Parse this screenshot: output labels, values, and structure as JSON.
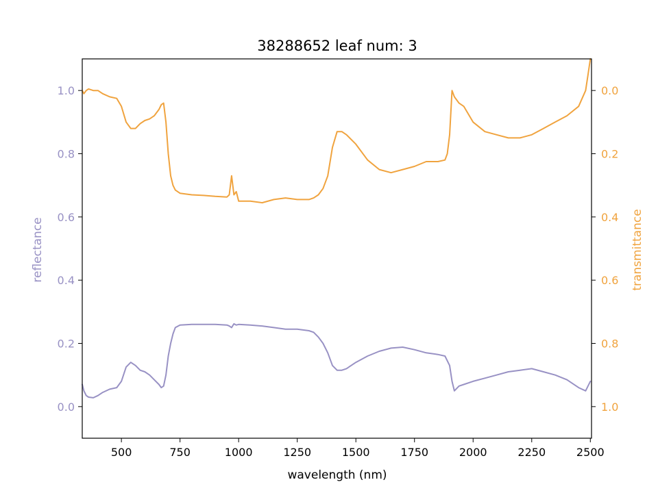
{
  "chart_data": {
    "type": "line",
    "title": "38288652 leaf num: 3",
    "xlabel": "wavelength (nm)",
    "xlim": [
      333,
      2505
    ],
    "x_ticks": [
      500,
      750,
      1000,
      1250,
      1500,
      1750,
      2000,
      2250,
      2500
    ],
    "x_tick_labels": [
      "500",
      "750",
      "1000",
      "1250",
      "1500",
      "1750",
      "2000",
      "2250",
      "2500"
    ],
    "y_left": {
      "label": "reflectance",
      "color": "#9891c4",
      "lim": [
        -0.1,
        1.1
      ],
      "ticks": [
        0.0,
        0.2,
        0.4,
        0.6,
        0.8,
        1.0
      ],
      "tick_labels": [
        "0.0",
        "0.2",
        "0.4",
        "0.6",
        "0.8",
        "1.0"
      ]
    },
    "y_right": {
      "label": "transmittance",
      "color": "#f0a33e",
      "inverted": true,
      "lim": [
        1.1,
        -0.1
      ],
      "ticks": [
        0.0,
        0.2,
        0.4,
        0.6,
        0.8,
        1.0
      ],
      "tick_labels": [
        "0.0",
        "0.2",
        "0.4",
        "0.6",
        "0.8",
        "1.0"
      ]
    },
    "grid": false,
    "series": [
      {
        "axis": "left",
        "color": "#9891c4",
        "x": [
          333,
          340,
          350,
          360,
          380,
          400,
          420,
          450,
          480,
          500,
          520,
          540,
          560,
          580,
          600,
          620,
          640,
          660,
          670,
          680,
          690,
          700,
          710,
          720,
          730,
          750,
          800,
          850,
          900,
          950,
          960,
          970,
          980,
          990,
          1000,
          1050,
          1100,
          1150,
          1200,
          1250,
          1300,
          1320,
          1340,
          1360,
          1380,
          1400,
          1420,
          1440,
          1460,
          1500,
          1550,
          1600,
          1650,
          1700,
          1750,
          1800,
          1850,
          1880,
          1900,
          1910,
          1920,
          1940,
          1960,
          2000,
          2050,
          2100,
          2150,
          2200,
          2250,
          2300,
          2350,
          2400,
          2450,
          2480,
          2500
        ],
        "y": [
          0.07,
          0.05,
          0.035,
          0.03,
          0.028,
          0.035,
          0.045,
          0.055,
          0.06,
          0.08,
          0.125,
          0.14,
          0.13,
          0.115,
          0.11,
          0.1,
          0.085,
          0.07,
          0.06,
          0.065,
          0.1,
          0.16,
          0.2,
          0.23,
          0.25,
          0.258,
          0.26,
          0.26,
          0.26,
          0.258,
          0.255,
          0.25,
          0.262,
          0.258,
          0.26,
          0.258,
          0.255,
          0.25,
          0.245,
          0.245,
          0.24,
          0.235,
          0.22,
          0.2,
          0.17,
          0.13,
          0.115,
          0.115,
          0.12,
          0.14,
          0.16,
          0.175,
          0.185,
          0.188,
          0.18,
          0.17,
          0.165,
          0.16,
          0.13,
          0.08,
          0.05,
          0.065,
          0.07,
          0.08,
          0.09,
          0.1,
          0.11,
          0.115,
          0.12,
          0.11,
          0.1,
          0.085,
          0.06,
          0.05,
          0.08
        ]
      },
      {
        "axis": "right",
        "color": "#f0a33e",
        "x": [
          333,
          340,
          350,
          360,
          380,
          400,
          420,
          450,
          480,
          500,
          520,
          540,
          560,
          580,
          600,
          620,
          640,
          660,
          670,
          680,
          690,
          700,
          710,
          720,
          730,
          750,
          800,
          850,
          900,
          950,
          960,
          970,
          980,
          990,
          1000,
          1050,
          1100,
          1150,
          1200,
          1250,
          1300,
          1320,
          1340,
          1360,
          1380,
          1400,
          1420,
          1440,
          1460,
          1500,
          1550,
          1600,
          1650,
          1700,
          1750,
          1800,
          1850,
          1880,
          1890,
          1900,
          1910,
          1920,
          1940,
          1960,
          2000,
          2050,
          2100,
          2150,
          2200,
          2250,
          2300,
          2350,
          2400,
          2450,
          2480,
          2490,
          2500
        ],
        "y": [
          0.0,
          0.01,
          0.0,
          -0.005,
          0.0,
          0.0,
          0.01,
          0.02,
          0.025,
          0.05,
          0.1,
          0.12,
          0.12,
          0.105,
          0.095,
          0.09,
          0.08,
          0.06,
          0.045,
          0.04,
          0.1,
          0.2,
          0.27,
          0.3,
          0.315,
          0.325,
          0.33,
          0.332,
          0.335,
          0.337,
          0.33,
          0.27,
          0.33,
          0.32,
          0.35,
          0.35,
          0.355,
          0.345,
          0.34,
          0.345,
          0.345,
          0.34,
          0.33,
          0.31,
          0.27,
          0.18,
          0.13,
          0.13,
          0.14,
          0.17,
          0.22,
          0.25,
          0.26,
          0.25,
          0.24,
          0.225,
          0.225,
          0.22,
          0.2,
          0.14,
          0.0,
          0.02,
          0.04,
          0.05,
          0.1,
          0.13,
          0.14,
          0.15,
          0.15,
          0.14,
          0.12,
          0.1,
          0.08,
          0.05,
          0.0,
          -0.05,
          -0.1
        ]
      }
    ]
  }
}
